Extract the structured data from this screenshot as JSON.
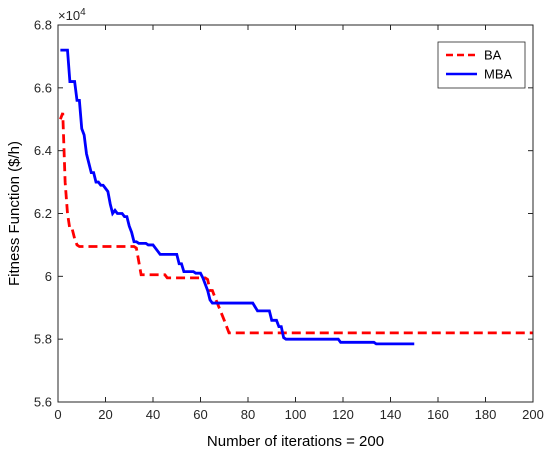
{
  "chart_data": {
    "type": "line",
    "xlabel": "Number of iterations = 200",
    "ylabel": "Fitness Function ($/h)",
    "y_exponent": "×10",
    "y_exponent_power": "4",
    "xlim": [
      0,
      200
    ],
    "ylim": [
      5.6,
      6.8
    ],
    "y_scale_factor": 10000,
    "x_ticks": [
      0,
      20,
      40,
      60,
      80,
      100,
      120,
      140,
      160,
      180,
      200
    ],
    "y_ticks": [
      5.6,
      5.8,
      6.0,
      6.2,
      6.4,
      6.6,
      6.8
    ],
    "x_tick_labels": [
      "0",
      "20",
      "40",
      "60",
      "80",
      "100",
      "120",
      "140",
      "160",
      "180",
      "200"
    ],
    "y_tick_labels": [
      "5.6",
      "5.8",
      "6",
      "6.2",
      "6.4",
      "6.6",
      "6.8"
    ],
    "grid": false,
    "legend_position": "top-right",
    "series": [
      {
        "name": "BA",
        "color": "#ff0000",
        "style": "dashed",
        "points": [
          [
            1,
            6.5
          ],
          [
            2,
            6.52
          ],
          [
            3,
            6.3
          ],
          [
            4,
            6.2
          ],
          [
            5,
            6.15
          ],
          [
            6,
            6.15
          ],
          [
            7,
            6.12
          ],
          [
            8,
            6.1
          ],
          [
            9,
            6.095
          ],
          [
            32,
            6.095
          ],
          [
            33,
            6.09
          ],
          [
            35,
            6.005
          ],
          [
            45,
            6.005
          ],
          [
            46,
            5.995
          ],
          [
            62,
            5.995
          ],
          [
            63,
            5.99
          ],
          [
            64,
            5.955
          ],
          [
            65,
            5.955
          ],
          [
            66,
            5.935
          ],
          [
            70,
            5.86
          ],
          [
            72,
            5.82
          ],
          [
            200,
            5.82
          ]
        ]
      },
      {
        "name": "MBA",
        "color": "#0000ff",
        "style": "solid",
        "points": [
          [
            1,
            6.72
          ],
          [
            4,
            6.72
          ],
          [
            5,
            6.62
          ],
          [
            7,
            6.62
          ],
          [
            8,
            6.56
          ],
          [
            9,
            6.56
          ],
          [
            10,
            6.47
          ],
          [
            11,
            6.45
          ],
          [
            12,
            6.39
          ],
          [
            13,
            6.36
          ],
          [
            14,
            6.33
          ],
          [
            15,
            6.33
          ],
          [
            16,
            6.3
          ],
          [
            17,
            6.3
          ],
          [
            18,
            6.29
          ],
          [
            19,
            6.29
          ],
          [
            20,
            6.28
          ],
          [
            21,
            6.27
          ],
          [
            22,
            6.23
          ],
          [
            23,
            6.2
          ],
          [
            24,
            6.21
          ],
          [
            25,
            6.2
          ],
          [
            27,
            6.2
          ],
          [
            28,
            6.19
          ],
          [
            29,
            6.19
          ],
          [
            30,
            6.16
          ],
          [
            31,
            6.14
          ],
          [
            32,
            6.11
          ],
          [
            33,
            6.11
          ],
          [
            34,
            6.105
          ],
          [
            35,
            6.105
          ],
          [
            37,
            6.105
          ],
          [
            38,
            6.1
          ],
          [
            40,
            6.1
          ],
          [
            41,
            6.09
          ],
          [
            42,
            6.08
          ],
          [
            43,
            6.07
          ],
          [
            50,
            6.07
          ],
          [
            51,
            6.04
          ],
          [
            52,
            6.04
          ],
          [
            53,
            6.015
          ],
          [
            57,
            6.015
          ],
          [
            58,
            6.01
          ],
          [
            60,
            6.01
          ],
          [
            61,
            5.995
          ],
          [
            63,
            5.955
          ],
          [
            64,
            5.925
          ],
          [
            65,
            5.915
          ],
          [
            82,
            5.915
          ],
          [
            84,
            5.89
          ],
          [
            89,
            5.89
          ],
          [
            90,
            5.86
          ],
          [
            92,
            5.86
          ],
          [
            93,
            5.84
          ],
          [
            94,
            5.84
          ],
          [
            95,
            5.805
          ],
          [
            96,
            5.8
          ],
          [
            118,
            5.8
          ],
          [
            119,
            5.79
          ],
          [
            133,
            5.79
          ],
          [
            134,
            5.785
          ],
          [
            150,
            5.785
          ]
        ]
      }
    ]
  }
}
